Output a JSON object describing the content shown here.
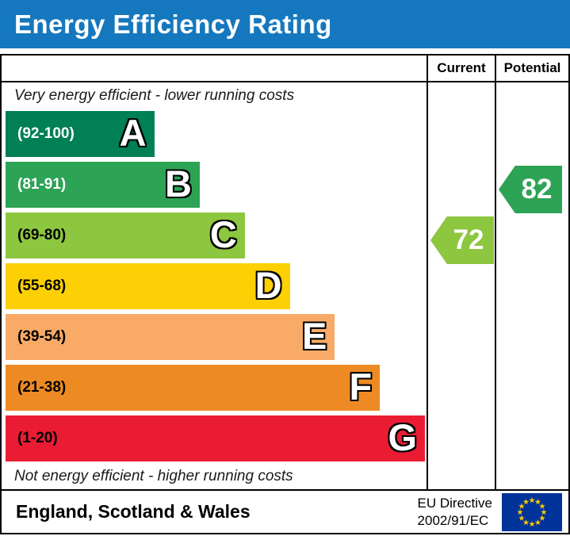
{
  "header": {
    "title": "Energy Efficiency Rating",
    "bg_color": "#1578be"
  },
  "columns": {
    "current": "Current",
    "potential": "Potential"
  },
  "top_note": "Very energy efficient - lower running costs",
  "bottom_note": "Not energy efficient - higher running costs",
  "chart_data": {
    "type": "bar",
    "title": "Energy Efficiency Rating",
    "bands": [
      {
        "letter": "A",
        "range": "(92-100)",
        "min": 92,
        "max": 100,
        "color": "#008054",
        "label_color": "#ffffff",
        "width_pct": 35.0
      },
      {
        "letter": "B",
        "range": "(81-91)",
        "min": 81,
        "max": 91,
        "color": "#2da355",
        "label_color": "#ffffff",
        "width_pct": 45.7
      },
      {
        "letter": "C",
        "range": "(69-80)",
        "min": 69,
        "max": 80,
        "color": "#8dc63f",
        "label_color": "#000000",
        "width_pct": 56.3
      },
      {
        "letter": "D",
        "range": "(55-68)",
        "min": 55,
        "max": 68,
        "color": "#fcd004",
        "label_color": "#000000",
        "width_pct": 66.9
      },
      {
        "letter": "E",
        "range": "(39-54)",
        "min": 39,
        "max": 54,
        "color": "#f9aa66",
        "label_color": "#000000",
        "width_pct": 77.5
      },
      {
        "letter": "F",
        "range": "(21-38)",
        "min": 21,
        "max": 38,
        "color": "#ee8a24",
        "label_color": "#000000",
        "width_pct": 88.1
      },
      {
        "letter": "G",
        "range": "(1-20)",
        "min": 1,
        "max": 20,
        "color": "#ea1c33",
        "label_color": "#000000",
        "width_pct": 98.7
      }
    ],
    "current": {
      "value": 72,
      "band": "C",
      "band_index": 2,
      "color": "#8dc63f"
    },
    "potential": {
      "value": 82,
      "band": "B",
      "band_index": 1,
      "color": "#2da355"
    }
  },
  "footer": {
    "region": "England, Scotland & Wales",
    "directive_line1": "EU Directive",
    "directive_line2": "2002/91/EC",
    "eu_flag": {
      "bg": "#003399",
      "star_color": "#ffcc00"
    }
  }
}
